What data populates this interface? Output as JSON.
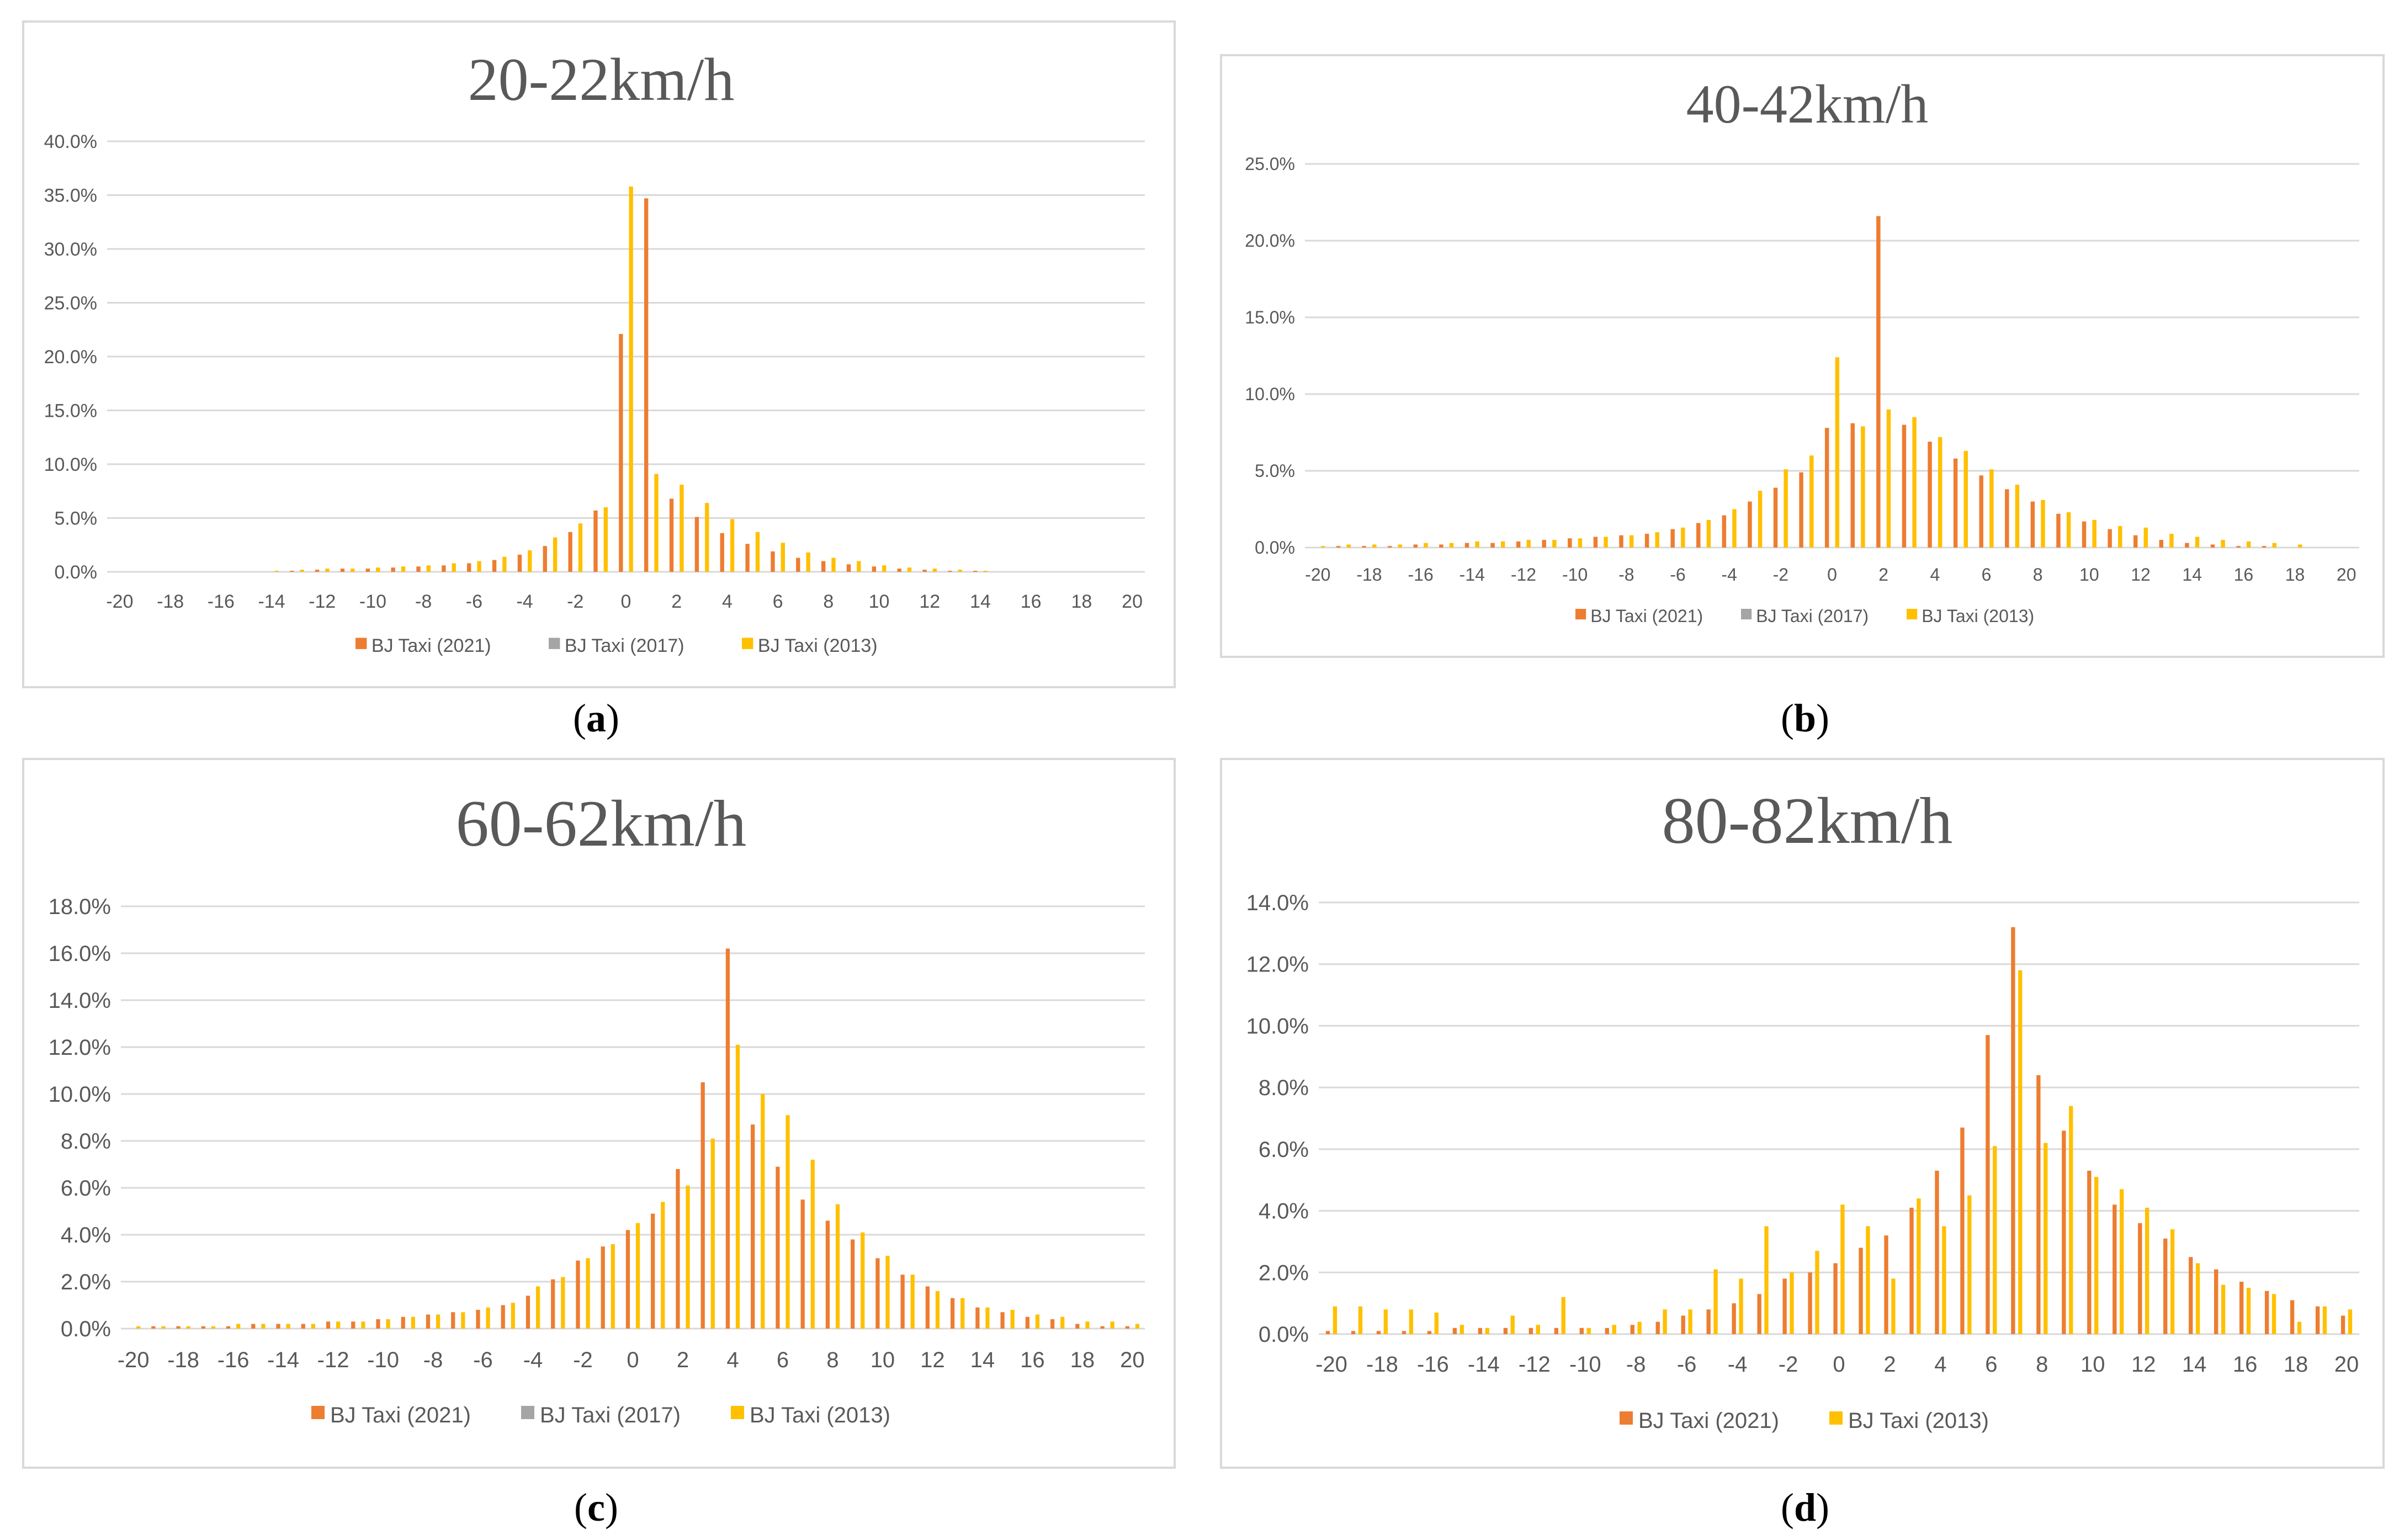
{
  "colors": {
    "series_2021": "#ED7D31",
    "series_2017": "#A5A5A5",
    "series_2013": "#FFC000",
    "grid": "#d9d9d9",
    "axis_text": "#595959"
  },
  "chart_data": [
    {
      "type": "bar",
      "title": "20-22km/h",
      "caption": "a",
      "ylim": [
        0,
        40
      ],
      "yticks": [
        "0.0%",
        "5.0%",
        "10.0%",
        "15.0%",
        "20.0%",
        "25.0%",
        "30.0%",
        "35.0%",
        "40.0%"
      ],
      "xticks": [
        "-20",
        "-18",
        "-16",
        "-14",
        "-12",
        "-10",
        "-8",
        "-6",
        "-4",
        "-2",
        "0",
        "2",
        "4",
        "6",
        "8",
        "10",
        "12",
        "14",
        "16",
        "18",
        "20"
      ],
      "categories": [
        -20,
        -19,
        -18,
        -17,
        -16,
        -15,
        -14,
        -13,
        -12,
        -11,
        -10,
        -9,
        -8,
        -7,
        -6,
        -5,
        -4,
        -3,
        -2,
        -1,
        0,
        1,
        2,
        3,
        4,
        5,
        6,
        7,
        8,
        9,
        10,
        11,
        12,
        13,
        14,
        15,
        16,
        17,
        18,
        19,
        20
      ],
      "legend": [
        "BJ Taxi (2021)",
        "BJ Taxi (2017)",
        "BJ Taxi (2013)"
      ],
      "series": [
        {
          "name": "BJ Taxi (2021)",
          "values": [
            0,
            0,
            0,
            0,
            0,
            0,
            0,
            0.1,
            0.2,
            0.3,
            0.3,
            0.4,
            0.5,
            0.6,
            0.8,
            1.1,
            1.6,
            2.4,
            3.7,
            5.7,
            22.1,
            34.7,
            6.8,
            5.1,
            3.6,
            2.6,
            1.9,
            1.3,
            1.0,
            0.7,
            0.5,
            0.3,
            0.2,
            0.1,
            0.1,
            0,
            0,
            0,
            0,
            0,
            0
          ]
        },
        {
          "name": "BJ Taxi (2017)",
          "values": [
            0,
            0,
            0,
            0,
            0,
            0,
            0,
            0,
            0,
            0,
            0,
            0,
            0,
            0,
            0,
            0,
            0,
            0,
            0,
            0,
            0,
            0,
            0,
            0,
            0,
            0,
            0,
            0,
            0,
            0,
            0,
            0,
            0,
            0,
            0,
            0,
            0,
            0,
            0,
            0,
            0
          ]
        },
        {
          "name": "BJ Taxi (2013)",
          "values": [
            0,
            0,
            0,
            0,
            0,
            0,
            0.1,
            0.2,
            0.3,
            0.3,
            0.4,
            0.5,
            0.6,
            0.8,
            1.0,
            1.4,
            2.0,
            3.2,
            4.5,
            6.0,
            35.8,
            9.1,
            8.1,
            6.4,
            4.9,
            3.7,
            2.7,
            1.8,
            1.3,
            1.0,
            0.6,
            0.4,
            0.3,
            0.2,
            0.1,
            0,
            0,
            0,
            0,
            0,
            0
          ]
        }
      ]
    },
    {
      "type": "bar",
      "title": "40-42km/h",
      "caption": "b",
      "ylim": [
        0,
        25
      ],
      "yticks": [
        "0.0%",
        "5.0%",
        "10.0%",
        "15.0%",
        "20.0%",
        "25.0%"
      ],
      "xticks": [
        "-20",
        "-18",
        "-16",
        "-14",
        "-12",
        "-10",
        "-8",
        "-6",
        "-4",
        "-2",
        "0",
        "2",
        "4",
        "6",
        "8",
        "10",
        "12",
        "14",
        "16",
        "18",
        "20"
      ],
      "categories": [
        -20,
        -19,
        -18,
        -17,
        -16,
        -15,
        -14,
        -13,
        -12,
        -11,
        -10,
        -9,
        -8,
        -7,
        -6,
        -5,
        -4,
        -3,
        -2,
        -1,
        0,
        1,
        2,
        3,
        4,
        5,
        6,
        7,
        8,
        9,
        10,
        11,
        12,
        13,
        14,
        15,
        16,
        17,
        18,
        19,
        20
      ],
      "legend": [
        "BJ Taxi (2021)",
        "BJ Taxi (2017)",
        "BJ Taxi (2013)"
      ],
      "series": [
        {
          "name": "BJ Taxi (2021)",
          "values": [
            0,
            0.1,
            0.1,
            0.1,
            0.2,
            0.2,
            0.3,
            0.3,
            0.4,
            0.5,
            0.6,
            0.7,
            0.8,
            0.9,
            1.2,
            1.6,
            2.1,
            3.0,
            3.9,
            4.9,
            7.8,
            8.1,
            21.6,
            8.0,
            6.9,
            5.8,
            4.7,
            3.8,
            3.0,
            2.2,
            1.7,
            1.2,
            0.8,
            0.5,
            0.3,
            0.2,
            0.1,
            0.1,
            0,
            0,
            0
          ]
        },
        {
          "name": "BJ Taxi (2017)",
          "values": [
            0,
            0,
            0,
            0,
            0,
            0,
            0,
            0,
            0,
            0,
            0,
            0,
            0,
            0,
            0,
            0,
            0,
            0,
            0,
            0,
            0,
            0,
            0,
            0,
            0,
            0,
            0,
            0,
            0,
            0,
            0,
            0,
            0,
            0,
            0,
            0,
            0,
            0,
            0,
            0,
            0
          ]
        },
        {
          "name": "BJ Taxi (2013)",
          "values": [
            0.1,
            0.2,
            0.2,
            0.2,
            0.3,
            0.3,
            0.4,
            0.4,
            0.5,
            0.5,
            0.6,
            0.7,
            0.8,
            1.0,
            1.3,
            1.8,
            2.5,
            3.7,
            5.1,
            6.0,
            12.4,
            7.9,
            9.0,
            8.5,
            7.2,
            6.3,
            5.1,
            4.1,
            3.1,
            2.3,
            1.8,
            1.4,
            1.3,
            0.9,
            0.7,
            0.5,
            0.4,
            0.3,
            0.2,
            0,
            0
          ]
        }
      ]
    },
    {
      "type": "bar",
      "title": "60-62km/h",
      "caption": "c",
      "ylim": [
        0,
        18
      ],
      "yticks": [
        "0.0%",
        "2.0%",
        "4.0%",
        "6.0%",
        "8.0%",
        "10.0%",
        "12.0%",
        "14.0%",
        "16.0%",
        "18.0%"
      ],
      "xticks": [
        "-20",
        "-18",
        "-16",
        "-14",
        "-12",
        "-10",
        "-8",
        "-6",
        "-4",
        "-2",
        "0",
        "2",
        "4",
        "6",
        "8",
        "10",
        "12",
        "14",
        "16",
        "18",
        "20"
      ],
      "categories": [
        -20,
        -19,
        -18,
        -17,
        -16,
        -15,
        -14,
        -13,
        -12,
        -11,
        -10,
        -9,
        -8,
        -7,
        -6,
        -5,
        -4,
        -3,
        -2,
        -1,
        0,
        1,
        2,
        3,
        4,
        5,
        6,
        7,
        8,
        9,
        10,
        11,
        12,
        13,
        14,
        15,
        16,
        17,
        18,
        19,
        20
      ],
      "legend": [
        "BJ Taxi (2021)",
        "BJ Taxi (2017)",
        "BJ Taxi (2013)"
      ],
      "series": [
        {
          "name": "BJ Taxi (2021)",
          "values": [
            0,
            0.1,
            0.1,
            0.1,
            0.1,
            0.2,
            0.2,
            0.2,
            0.3,
            0.3,
            0.4,
            0.5,
            0.6,
            0.7,
            0.8,
            1.0,
            1.4,
            2.1,
            2.9,
            3.5,
            4.2,
            4.9,
            6.8,
            10.5,
            16.2,
            8.7,
            6.9,
            5.5,
            4.6,
            3.8,
            3.0,
            2.3,
            1.8,
            1.3,
            0.9,
            0.7,
            0.5,
            0.4,
            0.2,
            0.1,
            0.1
          ]
        },
        {
          "name": "BJ Taxi (2017)",
          "values": [
            0,
            0,
            0,
            0,
            0,
            0,
            0,
            0,
            0,
            0,
            0,
            0,
            0,
            0,
            0,
            0,
            0,
            0,
            0,
            0,
            0,
            0,
            0,
            0,
            0,
            0,
            0,
            0,
            0,
            0,
            0,
            0,
            0,
            0,
            0,
            0,
            0,
            0,
            0,
            0,
            0
          ]
        },
        {
          "name": "BJ Taxi (2013)",
          "values": [
            0.1,
            0.1,
            0.1,
            0.1,
            0.2,
            0.2,
            0.2,
            0.2,
            0.3,
            0.3,
            0.4,
            0.5,
            0.6,
            0.7,
            0.9,
            1.1,
            1.8,
            2.2,
            3.0,
            3.6,
            4.5,
            5.4,
            6.1,
            8.1,
            12.1,
            10.0,
            9.1,
            7.2,
            5.3,
            4.1,
            3.1,
            2.3,
            1.6,
            1.3,
            0.9,
            0.8,
            0.6,
            0.5,
            0.3,
            0.3,
            0.2
          ]
        }
      ]
    },
    {
      "type": "bar",
      "title": "80-82km/h",
      "caption": "d",
      "ylim": [
        0,
        14
      ],
      "yticks": [
        "0.0%",
        "2.0%",
        "4.0%",
        "6.0%",
        "8.0%",
        "10.0%",
        "12.0%",
        "14.0%"
      ],
      "xticks": [
        "-20",
        "-18",
        "-16",
        "-14",
        "-12",
        "-10",
        "-8",
        "-6",
        "-4",
        "-2",
        "0",
        "2",
        "4",
        "6",
        "8",
        "10",
        "12",
        "14",
        "16",
        "18",
        "20"
      ],
      "categories": [
        -20,
        -19,
        -18,
        -17,
        -16,
        -15,
        -14,
        -13,
        -12,
        -11,
        -10,
        -9,
        -8,
        -7,
        -6,
        -5,
        -4,
        -3,
        -2,
        -1,
        0,
        1,
        2,
        3,
        4,
        5,
        6,
        7,
        8,
        9,
        10,
        11,
        12,
        13,
        14,
        15,
        16,
        17,
        18,
        19,
        20
      ],
      "legend": [
        "BJ Taxi (2021)",
        "BJ Taxi (2013)"
      ],
      "series": [
        {
          "name": "BJ Taxi (2021)",
          "values": [
            0.1,
            0.1,
            0.1,
            0.1,
            0.1,
            0.2,
            0.2,
            0.2,
            0.2,
            0.2,
            0.2,
            0.2,
            0.3,
            0.4,
            0.6,
            0.8,
            1.0,
            1.3,
            1.8,
            2.0,
            2.3,
            2.8,
            3.2,
            4.1,
            5.3,
            6.7,
            9.7,
            13.2,
            8.4,
            6.6,
            5.3,
            4.2,
            3.6,
            3.1,
            2.5,
            2.1,
            1.7,
            1.4,
            1.1,
            0.9,
            0.6
          ]
        },
        {
          "name": "BJ Taxi (2013)",
          "values": [
            0.9,
            0.9,
            0.8,
            0.8,
            0.7,
            0.3,
            0.2,
            0.6,
            0.3,
            1.2,
            0.2,
            0.3,
            0.4,
            0.8,
            0.8,
            2.1,
            1.8,
            3.5,
            2.0,
            2.7,
            4.2,
            3.5,
            1.8,
            4.4,
            3.5,
            4.5,
            6.1,
            11.8,
            6.2,
            7.4,
            5.1,
            4.7,
            4.1,
            3.4,
            2.3,
            1.6,
            1.5,
            1.3,
            0.4,
            0.9,
            0.8
          ]
        }
      ]
    }
  ]
}
